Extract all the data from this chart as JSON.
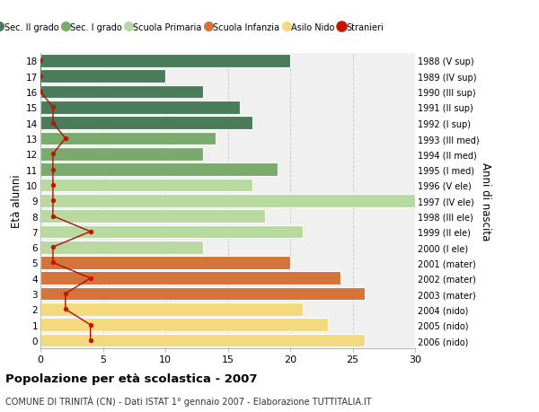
{
  "ages": [
    18,
    17,
    16,
    15,
    14,
    13,
    12,
    11,
    10,
    9,
    8,
    7,
    6,
    5,
    4,
    3,
    2,
    1,
    0
  ],
  "right_labels": [
    "1988 (V sup)",
    "1989 (IV sup)",
    "1990 (III sup)",
    "1991 (II sup)",
    "1992 (I sup)",
    "1993 (III med)",
    "1994 (II med)",
    "1995 (I med)",
    "1996 (V ele)",
    "1997 (IV ele)",
    "1998 (III ele)",
    "1999 (II ele)",
    "2000 (I ele)",
    "2001 (mater)",
    "2002 (mater)",
    "2003 (mater)",
    "2004 (nido)",
    "2005 (nido)",
    "2006 (nido)"
  ],
  "bar_values": [
    20,
    10,
    13,
    16,
    17,
    14,
    13,
    19,
    17,
    30,
    18,
    21,
    13,
    20,
    24,
    26,
    21,
    23,
    26
  ],
  "bar_colors": [
    "#4a7c59",
    "#4a7c59",
    "#4a7c59",
    "#4a7c59",
    "#4a7c59",
    "#7aab6d",
    "#7aab6d",
    "#7aab6d",
    "#b8d9a0",
    "#b8d9a0",
    "#b8d9a0",
    "#b8d9a0",
    "#b8d9a0",
    "#d4733a",
    "#d4733a",
    "#d4733a",
    "#f5d97e",
    "#f5d97e",
    "#f5d97e"
  ],
  "stranieri_values": [
    0,
    0,
    0,
    1,
    1,
    2,
    1,
    1,
    1,
    1,
    1,
    4,
    1,
    1,
    4,
    2,
    2,
    4,
    4
  ],
  "legend_labels": [
    "Sec. II grado",
    "Sec. I grado",
    "Scuola Primaria",
    "Scuola Infanzia",
    "Asilo Nido",
    "Stranieri"
  ],
  "legend_colors": [
    "#4a7c59",
    "#7aab6d",
    "#b8d9a0",
    "#d4733a",
    "#f5d97e",
    "#cc1100"
  ],
  "ylabel": "Età alunni",
  "right_ylabel": "Anni di nascita",
  "title": "Popolazione per età scolastica - 2007",
  "subtitle": "COMUNE DI TRINITÀ (CN) - Dati ISTAT 1° gennaio 2007 - Elaborazione TUTTITALIA.IT",
  "xlim": [
    0,
    30
  ],
  "background_color": "#ffffff",
  "plot_bg_color": "#f0f0f0",
  "grid_color": "#cccccc",
  "bar_height": 0.85,
  "line_color": "#aa1100",
  "dot_color": "#cc1100"
}
